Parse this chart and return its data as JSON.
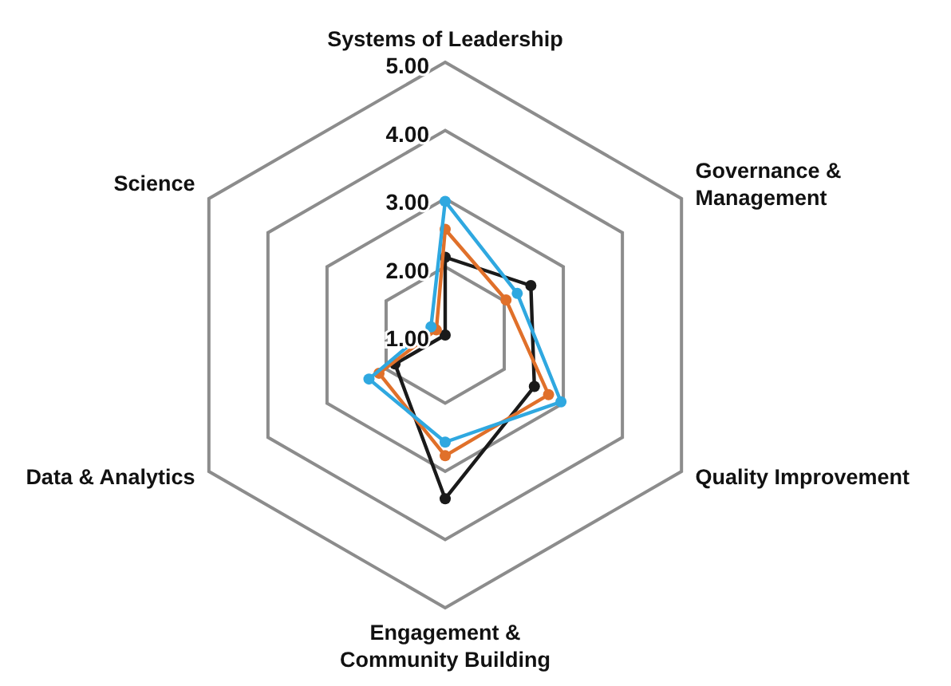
{
  "chart_data": {
    "type": "radar",
    "categories": [
      "Systems of Leadership",
      "Governance & Management",
      "Quality Improvement",
      "Engagement & Community Building",
      "Data & Analytics",
      "Science"
    ],
    "ylim": [
      1,
      5
    ],
    "yticks": [
      {
        "value": 1,
        "label": "1.00"
      },
      {
        "value": 2,
        "label": "2.00"
      },
      {
        "value": 3,
        "label": "3.00"
      },
      {
        "value": 4,
        "label": "4.00"
      },
      {
        "value": 5,
        "label": "5.00"
      }
    ],
    "marker": "circle",
    "series": [
      {
        "color": "#1a1a1a",
        "values": [
          2.14,
          2.45,
          2.51,
          3.4,
          1.85,
          1.0
        ]
      },
      {
        "color": "#e0702a",
        "values": [
          2.55,
          2.03,
          2.75,
          2.77,
          2.12,
          1.15
        ]
      },
      {
        "color": "#2fa8e0",
        "values": [
          2.96,
          2.22,
          2.96,
          2.57,
          2.29,
          1.24
        ]
      }
    ]
  }
}
